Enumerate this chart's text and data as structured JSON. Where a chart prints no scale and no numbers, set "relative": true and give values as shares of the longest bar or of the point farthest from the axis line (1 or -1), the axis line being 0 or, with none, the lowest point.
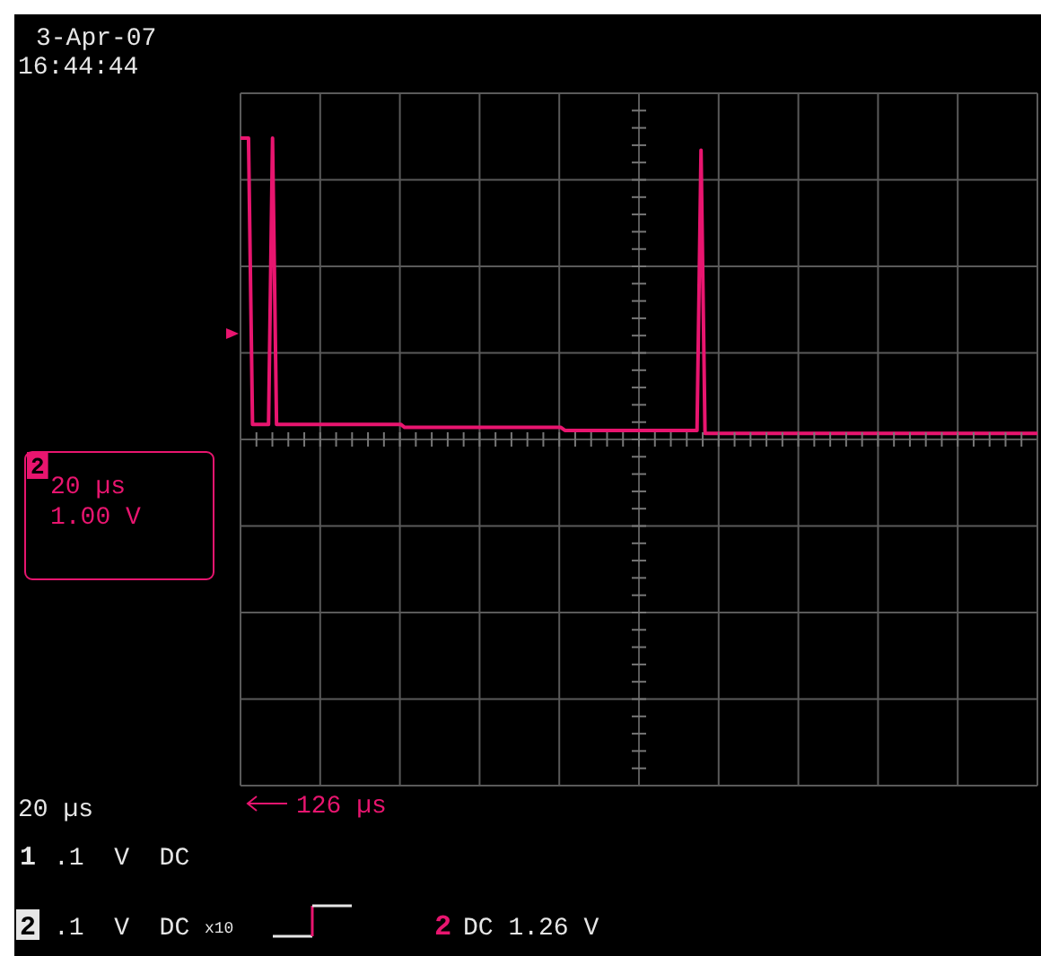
{
  "chart_data": {
    "type": "line",
    "relative": true,
    "grid": true,
    "color": "#e8156f",
    "annotations": [
      "3-Apr-07",
      "16:44:44",
      "2",
      "20 µs",
      "1.00 V",
      "126 µs",
      "20 µs",
      "1",
      ".1  V  DC",
      "2",
      ".1  V  DC",
      "x10",
      "2",
      "DC 1.26 V"
    ],
    "categories": [
      null,
      null,
      null,
      null,
      null,
      null,
      null,
      null,
      null,
      null,
      null,
      null,
      null,
      null,
      null,
      null,
      null,
      null,
      null,
      null,
      null,
      null,
      null,
      null,
      null,
      null,
      null,
      null,
      null,
      null,
      null,
      null,
      null,
      null,
      null,
      null,
      null,
      null,
      null,
      null,
      null,
      null,
      null,
      null,
      null,
      null,
      null,
      null,
      null,
      null,
      null,
      null,
      null,
      null,
      null,
      null,
      null,
      null,
      null,
      null,
      null,
      null,
      null,
      null,
      null,
      null,
      null,
      null,
      null,
      null,
      null,
      null,
      null,
      null,
      null,
      null,
      null,
      null,
      null,
      null,
      null,
      null,
      null,
      null,
      null,
      null,
      null,
      null,
      null,
      null,
      null,
      null,
      null,
      null,
      null,
      null,
      null,
      null,
      null,
      null,
      null,
      null,
      null,
      null,
      null,
      null,
      null,
      null,
      null,
      null,
      null,
      null,
      null,
      null,
      null,
      null,
      null,
      null,
      null,
      null,
      null,
      null,
      null,
      null,
      null,
      null,
      null,
      null,
      null,
      null,
      null,
      null,
      null,
      null,
      null,
      null,
      null,
      null,
      null,
      null,
      null,
      null,
      null,
      null,
      null,
      null,
      null,
      null,
      null,
      null,
      null,
      null,
      null,
      null,
      null,
      null,
      null,
      null,
      null,
      null,
      null,
      null,
      null,
      null,
      null,
      null,
      null,
      null,
      null,
      null,
      null,
      null,
      null,
      null,
      null,
      null,
      null,
      null,
      null,
      null,
      null,
      null,
      null,
      null,
      null,
      null,
      null,
      null,
      null,
      null,
      null,
      null,
      null,
      null,
      null,
      null,
      null,
      null,
      null,
      null
    ],
    "values": [
      1,
      1,
      1,
      0.05,
      0.05,
      0.05,
      0.05,
      0.05,
      1,
      0.05,
      0.05,
      0.05,
      0.05,
      0.05,
      0.05,
      0.05,
      0.05,
      0.05,
      0.05,
      0.05,
      0.05,
      0.05,
      0.05,
      0.05,
      0.05,
      0.05,
      0.05,
      0.05,
      0.05,
      0.05,
      0.05,
      0.05,
      0.05,
      0.05,
      0.05,
      0.05,
      0.05,
      0.05,
      0.05,
      0.05,
      0.05,
      0.04,
      0.04,
      0.04,
      0.04,
      0.04,
      0.04,
      0.04,
      0.04,
      0.04,
      0.04,
      0.04,
      0.04,
      0.04,
      0.04,
      0.04,
      0.04,
      0.04,
      0.04,
      0.04,
      0.04,
      0.04,
      0.04,
      0.04,
      0.04,
      0.04,
      0.04,
      0.04,
      0.04,
      0.04,
      0.04,
      0.04,
      0.04,
      0.04,
      0.04,
      0.04,
      0.04,
      0.04,
      0.04,
      0.04,
      0.04,
      0.03,
      0.03,
      0.03,
      0.03,
      0.03,
      0.03,
      0.03,
      0.03,
      0.03,
      0.03,
      0.03,
      0.03,
      0.03,
      0.03,
      0.03,
      0.03,
      0.03,
      0.03,
      0.03,
      0.03,
      0.03,
      0.03,
      0.03,
      0.03,
      0.03,
      0.03,
      0.03,
      0.03,
      0.03,
      0.03,
      0.03,
      0.03,
      0.03,
      0.03,
      0.96,
      0.02,
      0.02,
      0.02,
      0.02,
      0.02,
      0.02,
      0.02,
      0.02,
      0.02,
      0.02,
      0.02,
      0.02,
      0.02,
      0.02,
      0.02,
      0.02,
      0.02,
      0.02,
      0.02,
      0.02,
      0.02,
      0.02,
      0.02,
      0.02,
      0.02,
      0.02,
      0.02,
      0.02,
      0.02,
      0.02,
      0.02,
      0.02,
      0.02,
      0.02,
      0.02,
      0.02,
      0.02,
      0.02,
      0.02,
      0.02,
      0.02,
      0.02,
      0.02,
      0.02,
      0.02,
      0.02,
      0.02,
      0.02,
      0.02,
      0.02,
      0.02,
      0.02,
      0.02,
      0.02,
      0.02,
      0.02,
      0.02,
      0.02,
      0.02,
      0.02,
      0.02,
      0.02,
      0.02,
      0.02,
      0.02,
      0.02,
      0.02,
      0.02,
      0.02,
      0.02,
      0.02,
      0.02,
      0.02,
      0.02,
      0.02,
      0.02,
      0.02,
      0.02,
      0.02,
      0.02,
      0.02,
      0.02,
      0.02,
      0.02
    ]
  }
}
